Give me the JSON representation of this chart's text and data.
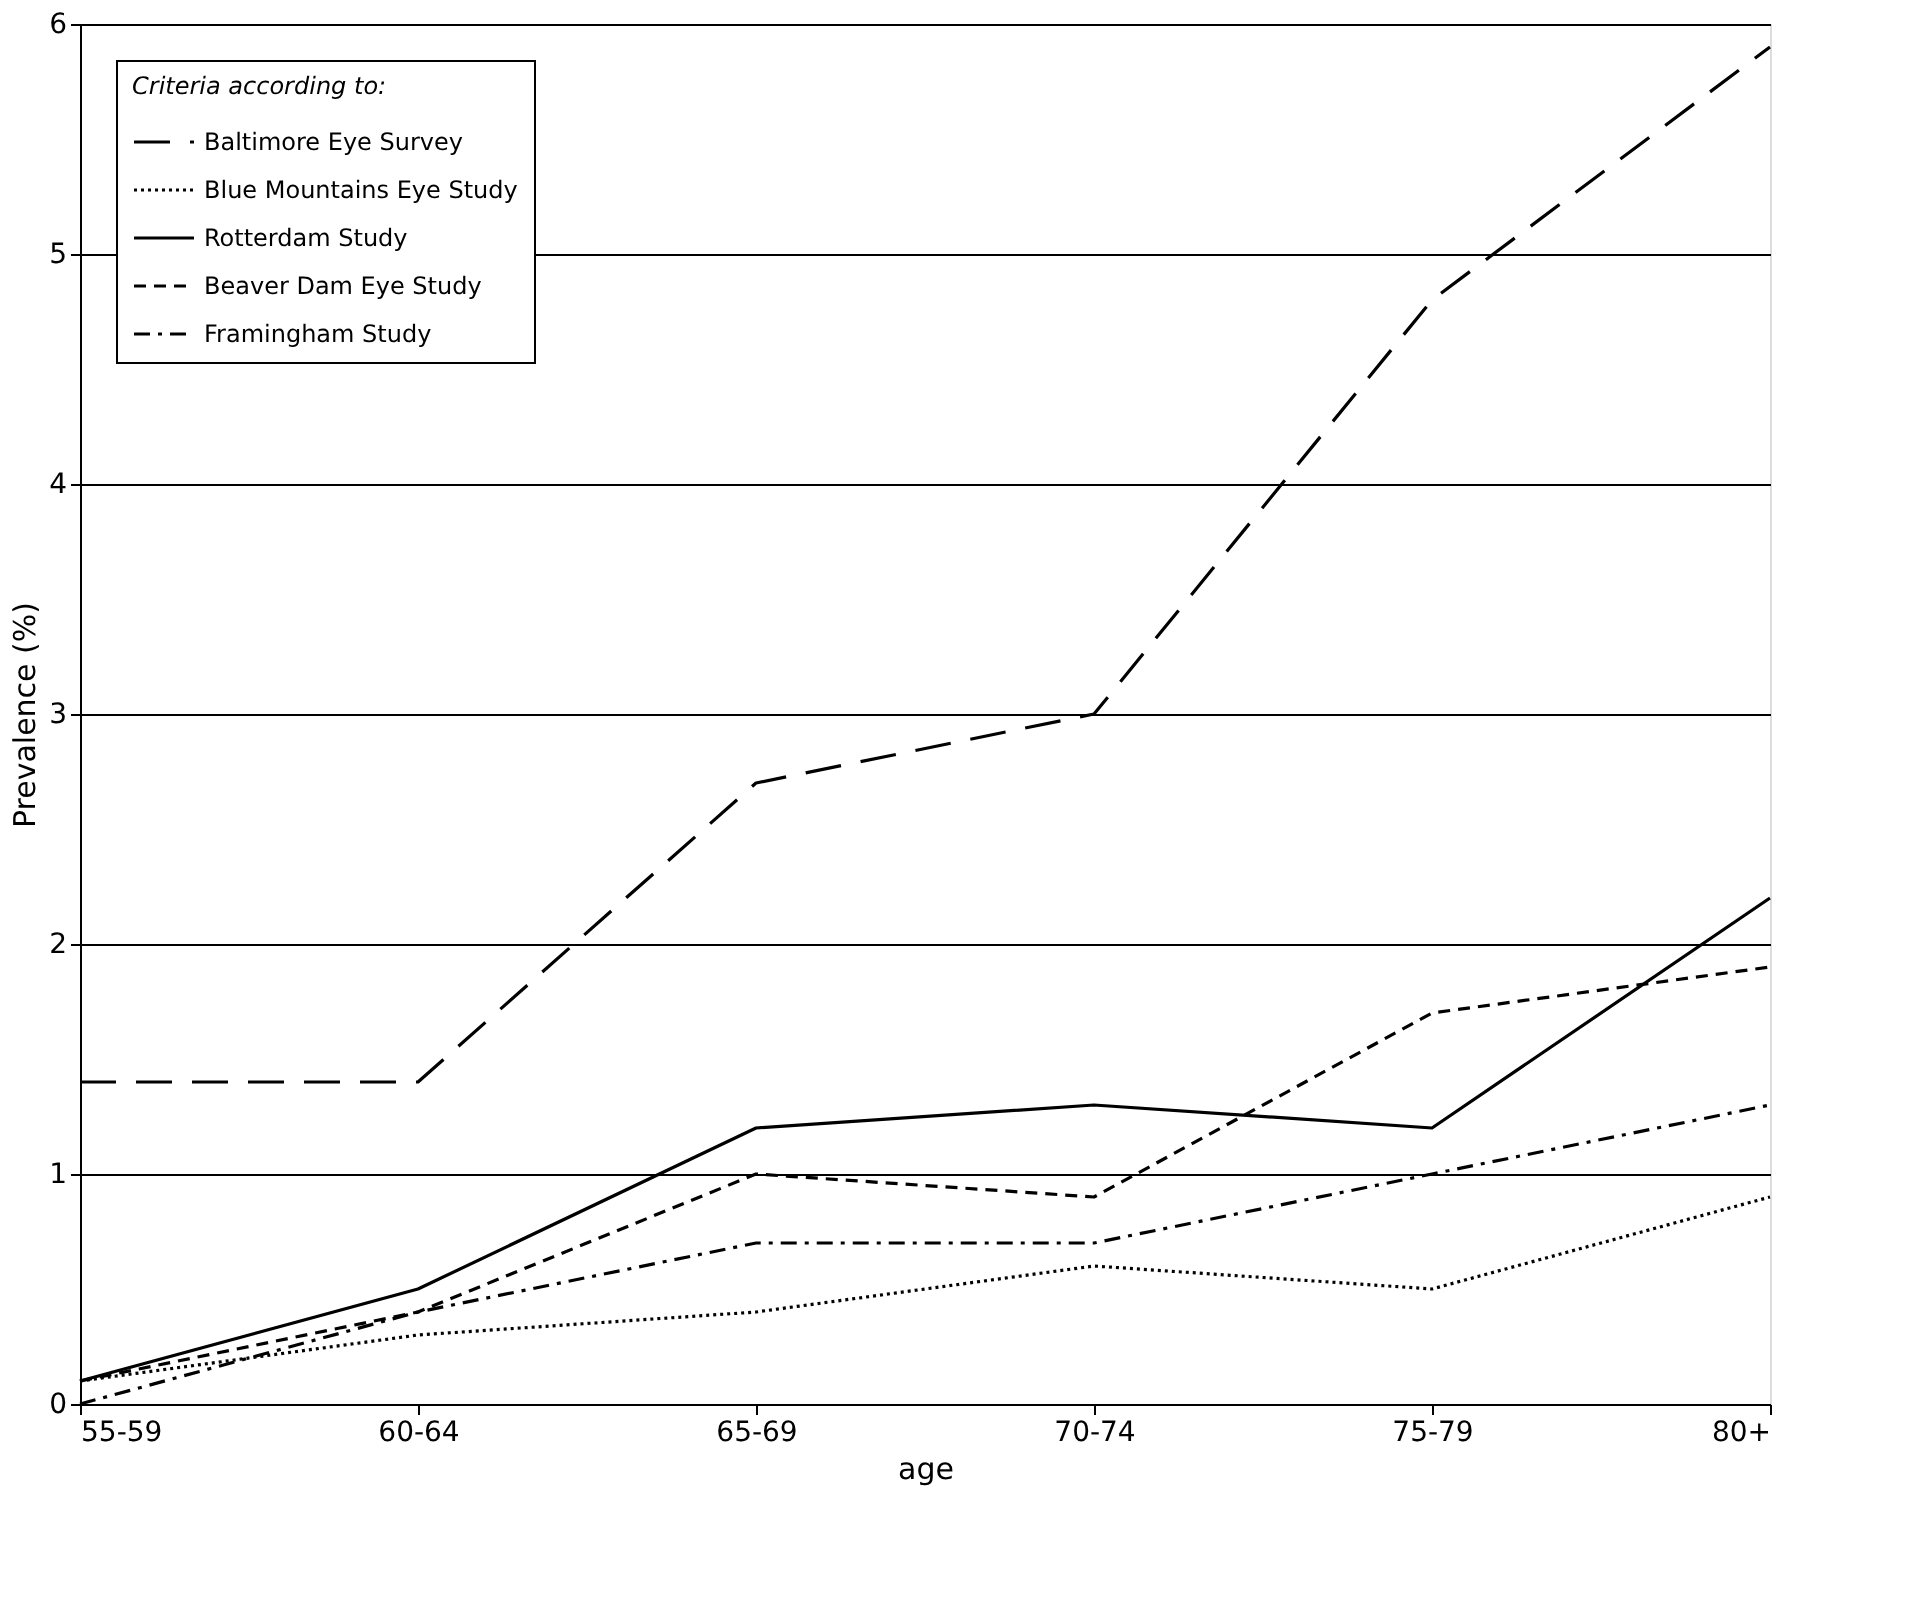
{
  "chart_data": {
    "type": "line",
    "xlabel": "age",
    "ylabel": "Prevalence (%)",
    "legend_title": "Criteria according to:",
    "categories": [
      "55-59",
      "60-64",
      "65-69",
      "70-74",
      "75-79",
      "80+"
    ],
    "series": [
      {
        "name": "Baltimore Eye Survey",
        "color": "#000000",
        "line_style": "longdashed",
        "values": [
          1.4,
          1.4,
          2.7,
          3.0,
          4.8,
          5.9
        ]
      },
      {
        "name": "Blue Mountains Eye Study",
        "color": "#000000",
        "line_style": "dotted",
        "values": [
          0.1,
          0.3,
          0.4,
          0.6,
          0.5,
          0.9
        ]
      },
      {
        "name": "Rotterdam Study",
        "color": "#000000",
        "line_style": "solid",
        "values": [
          0.1,
          0.5,
          1.2,
          1.3,
          1.2,
          2.2
        ]
      },
      {
        "name": "Beaver Dam Eye Study",
        "color": "#000000",
        "line_style": "dashed",
        "values": [
          0.1,
          0.4,
          1.0,
          0.9,
          1.7,
          1.9
        ]
      },
      {
        "name": "Framingham Study",
        "color": "#000000",
        "line_style": "dashdot",
        "values": [
          0.0,
          0.4,
          0.7,
          0.7,
          1.0,
          1.3
        ]
      }
    ],
    "ylim": [
      0,
      6
    ],
    "yticks": [
      0,
      1,
      2,
      3,
      4,
      5,
      6
    ],
    "grid": "y",
    "legend": "top left",
    "marker": "none"
  }
}
